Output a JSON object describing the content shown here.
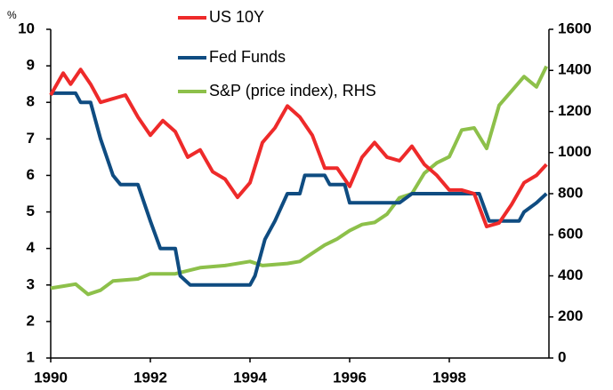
{
  "chart_data": {
    "type": "line",
    "y_label": "%",
    "xlim": [
      1990,
      2000
    ],
    "xticks": [
      1990,
      1992,
      1994,
      1996,
      1998
    ],
    "ylim": [
      1,
      10
    ],
    "yticks": [
      1,
      2,
      3,
      4,
      5,
      6,
      7,
      8,
      9,
      10
    ],
    "y2lim": [
      0,
      1600
    ],
    "y2ticks": [
      0,
      200,
      400,
      600,
      800,
      1000,
      1200,
      1400,
      1600
    ],
    "series": [
      {
        "name": "US 10Y",
        "color": "#ee2a2a",
        "x": [
          1990,
          1990.25,
          1990.4,
          1990.6,
          1990.8,
          1991,
          1991.25,
          1991.5,
          1991.75,
          1992,
          1992.25,
          1992.5,
          1992.75,
          1993,
          1993.25,
          1993.5,
          1993.75,
          1994,
          1994.25,
          1994.5,
          1994.75,
          1995,
          1995.25,
          1995.5,
          1995.75,
          1996,
          1996.25,
          1996.5,
          1996.75,
          1997,
          1997.25,
          1997.5,
          1997.75,
          1998,
          1998.25,
          1998.5,
          1998.75,
          1999,
          1999.25,
          1999.5,
          1999.75,
          1999.95
        ],
        "values": [
          8.2,
          8.8,
          8.5,
          8.9,
          8.5,
          8.0,
          8.1,
          8.2,
          7.6,
          7.1,
          7.5,
          7.2,
          6.5,
          6.7,
          6.1,
          5.9,
          5.4,
          5.8,
          6.9,
          7.3,
          7.9,
          7.6,
          7.1,
          6.2,
          6.2,
          5.7,
          6.5,
          6.9,
          6.5,
          6.4,
          6.8,
          6.3,
          6.0,
          5.6,
          5.6,
          5.5,
          4.6,
          4.7,
          5.2,
          5.8,
          6.0,
          6.3
        ]
      },
      {
        "name": "Fed Funds",
        "color": "#0f4c81",
        "x": [
          1990,
          1990.5,
          1990.6,
          1990.8,
          1991,
          1991.25,
          1991.4,
          1991.75,
          1992,
          1992.2,
          1992.5,
          1992.6,
          1992.8,
          1993,
          1993.5,
          1994,
          1994.1,
          1994.3,
          1994.5,
          1994.75,
          1995,
          1995.1,
          1995.5,
          1995.6,
          1995.9,
          1996,
          1996.5,
          1997,
          1997.25,
          1998,
          1998.6,
          1998.8,
          1999,
          1999.4,
          1999.5,
          1999.75,
          1999.95
        ],
        "values": [
          8.25,
          8.25,
          8.0,
          8.0,
          7.0,
          6.0,
          5.75,
          5.75,
          4.75,
          4.0,
          4.0,
          3.25,
          3.0,
          3.0,
          3.0,
          3.0,
          3.25,
          4.25,
          4.75,
          5.5,
          5.5,
          6.0,
          6.0,
          5.75,
          5.75,
          5.25,
          5.25,
          5.25,
          5.5,
          5.5,
          5.5,
          4.75,
          4.75,
          4.75,
          5.0,
          5.25,
          5.5
        ]
      },
      {
        "name": "S&P (price index), RHS",
        "color": "#8dc04a",
        "axis": "y2",
        "x": [
          1990,
          1990.25,
          1990.5,
          1990.75,
          1991,
          1991.25,
          1991.5,
          1991.75,
          1992,
          1992.5,
          1993,
          1993.5,
          1994,
          1994.25,
          1994.5,
          1994.75,
          1995,
          1995.25,
          1995.5,
          1995.75,
          1996,
          1996.25,
          1996.5,
          1996.75,
          1997,
          1997.25,
          1997.5,
          1997.75,
          1998,
          1998.25,
          1998.5,
          1998.75,
          1999,
          1999.25,
          1999.5,
          1999.75,
          1999.95
        ],
        "values": [
          340,
          350,
          360,
          310,
          330,
          375,
          380,
          385,
          410,
          410,
          440,
          450,
          470,
          450,
          455,
          460,
          470,
          510,
          550,
          580,
          620,
          650,
          660,
          700,
          780,
          800,
          900,
          950,
          980,
          1110,
          1120,
          1020,
          1230,
          1300,
          1370,
          1320,
          1420
        ]
      }
    ]
  }
}
